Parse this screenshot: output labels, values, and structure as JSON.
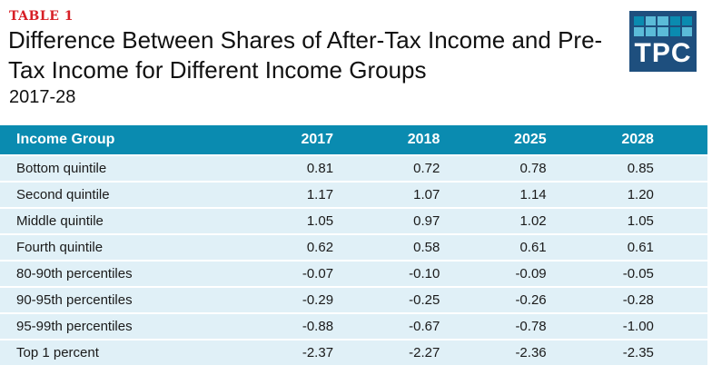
{
  "header": {
    "label": "TABLE 1",
    "title": "Difference Between Shares of After-Tax Income and Pre-Tax Income for Different Income Groups",
    "subtitle": "2017-28"
  },
  "logo": {
    "text": "TPC",
    "colors": {
      "background": "#1e4f7e",
      "cell_light": "#5bbbd8",
      "cell_dark": "#0a8bb0"
    },
    "cells": [
      "dark",
      "light",
      "light",
      "dark",
      "dark",
      "light",
      "light",
      "light",
      "dark",
      "light"
    ]
  },
  "table": {
    "colors": {
      "header_bg": "#0a8bb0",
      "row_bg": "#e0f0f7"
    },
    "columns": [
      "Income Group",
      "2017",
      "2018",
      "2025",
      "2028"
    ],
    "rows": [
      {
        "group": "Bottom quintile",
        "values": [
          "0.81",
          "0.72",
          "0.78",
          "0.85"
        ]
      },
      {
        "group": "Second quintile",
        "values": [
          "1.17",
          "1.07",
          "1.14",
          "1.20"
        ]
      },
      {
        "group": "Middle quintile",
        "values": [
          "1.05",
          "0.97",
          "1.02",
          "1.05"
        ]
      },
      {
        "group": "Fourth quintile",
        "values": [
          "0.62",
          "0.58",
          "0.61",
          "0.61"
        ]
      },
      {
        "group": "80-90th percentiles",
        "values": [
          "-0.07",
          "-0.10",
          "-0.09",
          "-0.05"
        ]
      },
      {
        "group": "90-95th percentiles",
        "values": [
          "-0.29",
          "-0.25",
          "-0.26",
          "-0.28"
        ]
      },
      {
        "group": "95-99th percentiles",
        "values": [
          "-0.88",
          "-0.67",
          "-0.78",
          "-1.00"
        ]
      },
      {
        "group": "Top 1 percent",
        "values": [
          "-2.37",
          "-2.27",
          "-2.36",
          "-2.35"
        ]
      }
    ]
  }
}
